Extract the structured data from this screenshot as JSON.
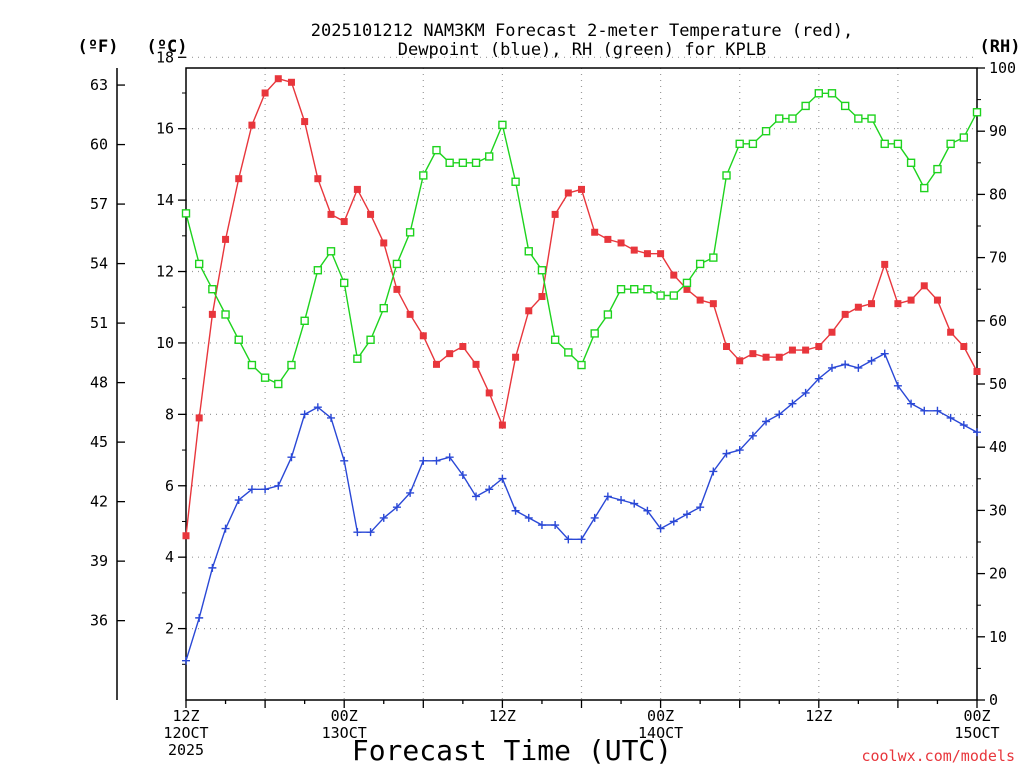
{
  "chart_data": {
    "type": "line",
    "title": "2025101212 NAM3KM Forecast 2-meter Temperature (red),",
    "subtitle": "Dewpoint (blue), RH (green) for KPLB",
    "ylabel_left_f": "(ºF)",
    "ylabel_left_c": "(ºC)",
    "ylabel_right": "(RH)",
    "xlabel": "Forecast Time (UTC)",
    "credit": "coolwx.com/models",
    "x_unit": "forecast hour",
    "xlim": [
      0,
      60
    ],
    "ylim_c": [
      0,
      17.7
    ],
    "ylim_rh": [
      0,
      100
    ],
    "grid": true,
    "x_ticks": [
      {
        "hour": 0,
        "line1": "12Z",
        "line2": "12OCT",
        "line3": "2025"
      },
      {
        "hour": 12,
        "line1": "00Z",
        "line2": "13OCT",
        "line3": ""
      },
      {
        "hour": 24,
        "line1": "12Z",
        "line2": "",
        "line3": ""
      },
      {
        "hour": 36,
        "line1": "00Z",
        "line2": "14OCT",
        "line3": ""
      },
      {
        "hour": 48,
        "line1": "12Z",
        "line2": "",
        "line3": ""
      },
      {
        "hour": 60,
        "line1": "00Z",
        "line2": "15OCT",
        "line3": ""
      }
    ],
    "y_ticks_c": [
      "2",
      "4",
      "6",
      "8",
      "10",
      "12",
      "14",
      "16",
      "18"
    ],
    "y_ticks_f": [
      "36",
      "39",
      "42",
      "45",
      "48",
      "51",
      "54",
      "57",
      "60",
      "63"
    ],
    "y_ticks_rh": [
      "0",
      "10",
      "20",
      "30",
      "40",
      "50",
      "60",
      "70",
      "80",
      "90",
      "100"
    ],
    "series": [
      {
        "name": "2-meter Temperature",
        "unit": "°C",
        "color": "#e8363c",
        "marker": "filled-square",
        "hours": [
          0,
          1,
          2,
          3,
          4,
          5,
          6,
          7,
          8,
          9,
          10,
          11,
          12,
          13,
          14,
          15,
          16,
          17,
          18,
          19,
          20,
          21,
          22,
          23,
          24,
          25,
          26,
          27,
          28,
          29,
          30,
          31,
          32,
          33,
          34,
          35,
          36,
          37,
          38,
          39,
          40,
          41,
          42,
          43,
          44,
          45,
          46,
          47,
          48,
          49,
          50,
          51,
          52,
          53,
          54,
          55,
          56,
          57,
          58,
          59,
          60
        ],
        "values": [
          4.6,
          7.9,
          10.8,
          12.9,
          14.6,
          16.1,
          17.0,
          17.4,
          17.3,
          16.2,
          14.6,
          13.6,
          13.4,
          14.3,
          13.6,
          12.8,
          11.5,
          10.8,
          10.2,
          9.4,
          9.7,
          9.9,
          9.4,
          8.6,
          7.7,
          9.6,
          10.9,
          11.3,
          13.6,
          14.2,
          14.3,
          13.1,
          12.9,
          12.8,
          12.6,
          12.5,
          12.5,
          11.9,
          11.5,
          11.2,
          11.1,
          9.9,
          9.5,
          9.7,
          9.6,
          9.6,
          9.8,
          9.8,
          9.9,
          10.3,
          10.8,
          11.0,
          11.1,
          12.2,
          11.1,
          11.2,
          11.6,
          11.2,
          10.3,
          9.9,
          9.2
        ]
      },
      {
        "name": "Dewpoint",
        "unit": "°C",
        "color": "#2a48d6",
        "marker": "plus",
        "hours": [
          0,
          1,
          2,
          3,
          4,
          5,
          6,
          7,
          8,
          9,
          10,
          11,
          12,
          13,
          14,
          15,
          16,
          17,
          18,
          19,
          20,
          21,
          22,
          23,
          24,
          25,
          26,
          27,
          28,
          29,
          30,
          31,
          32,
          33,
          34,
          35,
          36,
          37,
          38,
          39,
          40,
          41,
          42,
          43,
          44,
          45,
          46,
          47,
          48,
          49,
          50,
          51,
          52,
          53,
          54,
          55,
          56,
          57,
          58,
          59,
          60
        ],
        "values": [
          1.1,
          2.3,
          3.7,
          4.8,
          5.6,
          5.9,
          5.9,
          6.0,
          6.8,
          8.0,
          8.2,
          7.9,
          6.7,
          4.7,
          4.7,
          5.1,
          5.4,
          5.8,
          6.7,
          6.7,
          6.8,
          6.3,
          5.7,
          5.9,
          6.2,
          5.3,
          5.1,
          4.9,
          4.9,
          4.5,
          4.5,
          5.1,
          5.7,
          5.6,
          5.5,
          5.3,
          4.8,
          5.0,
          5.2,
          5.4,
          6.4,
          6.9,
          7.0,
          7.4,
          7.8,
          8.0,
          8.3,
          8.6,
          9.0,
          9.3,
          9.4,
          9.3,
          9.5,
          9.7,
          8.8,
          8.3,
          8.1,
          8.1,
          7.9,
          7.7,
          7.5
        ]
      },
      {
        "name": "RH",
        "unit": "%",
        "color": "#1ed31e",
        "marker": "open-square",
        "hours": [
          0,
          1,
          2,
          3,
          4,
          5,
          6,
          7,
          8,
          9,
          10,
          11,
          12,
          13,
          14,
          15,
          16,
          17,
          18,
          19,
          20,
          21,
          22,
          23,
          24,
          25,
          26,
          27,
          28,
          29,
          30,
          31,
          32,
          33,
          34,
          35,
          36,
          37,
          38,
          39,
          40,
          41,
          42,
          43,
          44,
          45,
          46,
          47,
          48,
          49,
          50,
          51,
          52,
          53,
          54,
          55,
          56,
          57,
          58,
          59,
          60
        ],
        "values": [
          77,
          69,
          65,
          61,
          57,
          53,
          51,
          50,
          53,
          60,
          68,
          71,
          66,
          54,
          57,
          62,
          69,
          74,
          83,
          87,
          85,
          85,
          85,
          86,
          91,
          82,
          71,
          68,
          57,
          55,
          53,
          58,
          61,
          65,
          65,
          65,
          64,
          64,
          66,
          69,
          70,
          83,
          88,
          88,
          90,
          92,
          92,
          94,
          96,
          96,
          94,
          92,
          92,
          88,
          88,
          85,
          81,
          84,
          88,
          89,
          93
        ]
      }
    ]
  }
}
